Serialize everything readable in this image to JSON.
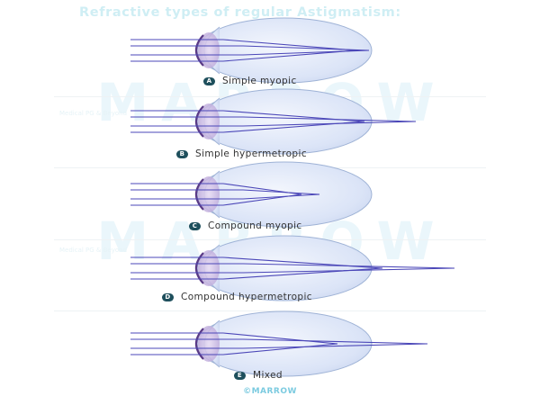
{
  "title": "Refractive types of regular Astigmatism:",
  "watermark": "MARROW",
  "watermark_tag": "Medical PG & Beyond",
  "footer": "©MARROW",
  "colors": {
    "ray": "#4b47b8",
    "eye_fill": "#dbe4f7",
    "eye_stroke": "#9fb3d6",
    "lens": "#5a3a86",
    "badge": "#1e4f5c",
    "title": "#cfeef4"
  },
  "panels": [
    {
      "letter": "A",
      "label": "Simple myopic"
    },
    {
      "letter": "B",
      "label": "Simple hypermetropic"
    },
    {
      "letter": "C",
      "label": "Compound myopic"
    },
    {
      "letter": "D",
      "label": "Compound hypermetropic"
    },
    {
      "letter": "E",
      "label": "Mixed"
    }
  ]
}
